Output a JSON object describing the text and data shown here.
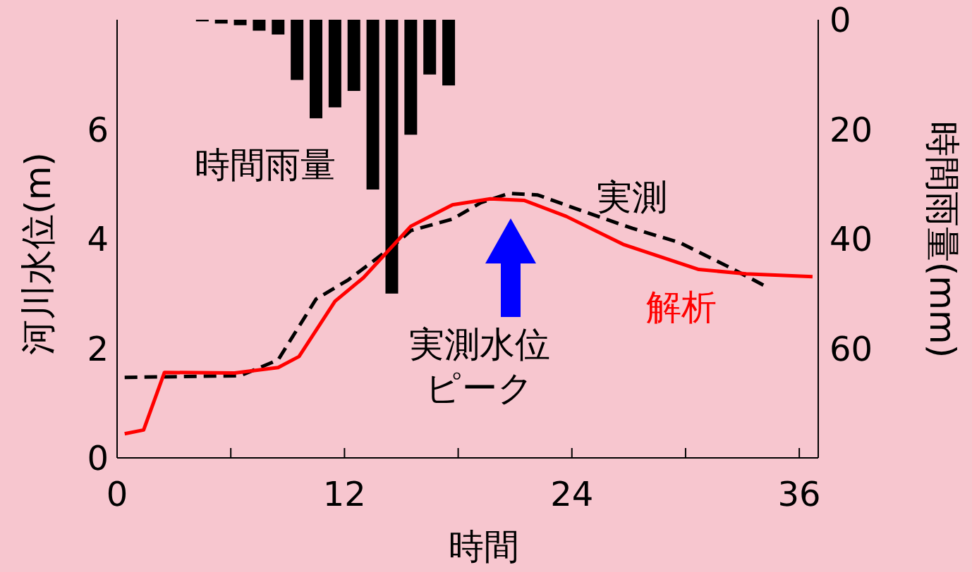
{
  "chart_data": {
    "type": "line",
    "xlabel": "時間",
    "ylabel": "河川水位(m)",
    "y2label": "時間雨量(mm)",
    "xlim": [
      0,
      37
    ],
    "xticks": [
      0,
      {
        "value": 6,
        "label": null
      },
      12,
      {
        "value": 18,
        "label": null
      },
      24,
      {
        "value": 30,
        "label": null
      },
      36
    ],
    "ylim": [
      0,
      8
    ],
    "yticks": [
      0,
      2,
      4,
      6
    ],
    "y2lim": [
      80,
      0
    ],
    "y2ticks": [
      0,
      20,
      40,
      60
    ],
    "series": [
      {
        "name": "時間雨量",
        "type": "bar",
        "axis": "y2",
        "color": "#000000",
        "x": [
          4.5,
          5.5,
          6.5,
          7.5,
          8.5,
          9.5,
          10.5,
          11.5,
          12.5,
          13.5,
          14.5,
          15.5,
          16.5,
          17.5
        ],
        "values": [
          0.3,
          0.7,
          1,
          2,
          2.7,
          11,
          18,
          16,
          13,
          31,
          50,
          21,
          10,
          12
        ]
      },
      {
        "name": "実測",
        "line_style": "dashed",
        "color": "#000000",
        "x": [
          0.4,
          6.5,
          8.5,
          10.5,
          12.2,
          14.5,
          15.5,
          17.7,
          19.2,
          20.7,
          22.2,
          24.7,
          27.2,
          29.7,
          32.2,
          34.3
        ],
        "values": [
          1.47,
          1.5,
          1.79,
          2.9,
          3.25,
          3.85,
          4.15,
          4.36,
          4.66,
          4.83,
          4.8,
          4.49,
          4.19,
          3.93,
          3.5,
          3.12
        ]
      },
      {
        "name": "解析",
        "line_style": "solid",
        "color": "#ff0000",
        "x": [
          0.4,
          1.4,
          2.5,
          6.2,
          8.5,
          9.6,
          11.5,
          13,
          15.5,
          17.7,
          19.7,
          21.5,
          23.7,
          26.7,
          30.7,
          33.2,
          36.7
        ],
        "values": [
          0.44,
          0.51,
          1.56,
          1.55,
          1.65,
          1.85,
          2.86,
          3.29,
          4.23,
          4.62,
          4.73,
          4.7,
          4.41,
          3.9,
          3.44,
          3.36,
          3.31
        ]
      }
    ],
    "annotations": [
      "実測水位ピーク"
    ]
  }
}
